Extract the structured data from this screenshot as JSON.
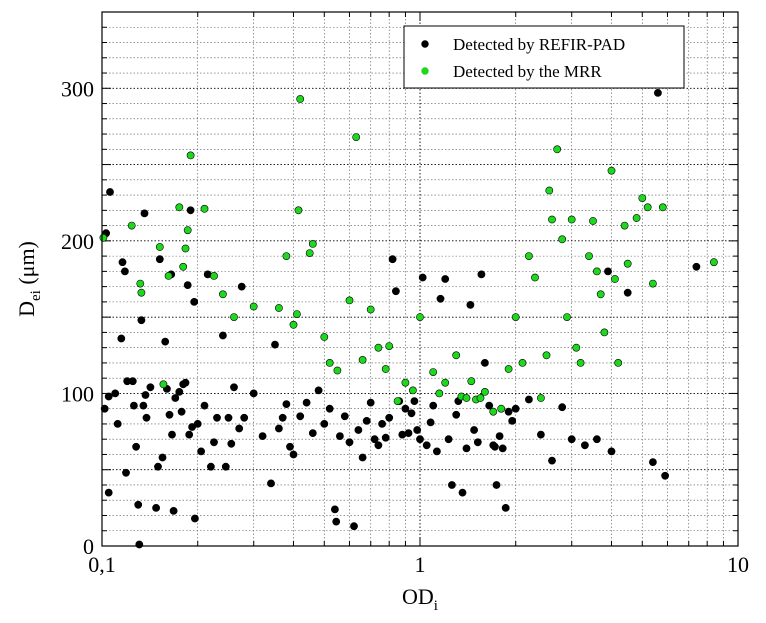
{
  "chart_data": {
    "type": "scatter",
    "x_scale": "log",
    "xlim": [
      0.1,
      10
    ],
    "ylim": [
      0,
      350
    ],
    "grid": true,
    "legend_position": "top-right",
    "xlabel": "OD",
    "xlabel_sub": "i",
    "ylabel": "D",
    "ylabel_sub": "ei",
    "ylabel_suffix": " (μm)",
    "x_ticks": [
      {
        "value": 0.1,
        "label": "0,1"
      },
      {
        "value": 1,
        "label": "1"
      },
      {
        "value": 10,
        "label": "10"
      }
    ],
    "y_ticks": [
      {
        "value": 0,
        "label": "0"
      },
      {
        "value": 100,
        "label": "100"
      },
      {
        "value": 200,
        "label": "200"
      },
      {
        "value": 300,
        "label": "300"
      }
    ],
    "series": [
      {
        "name": "Detected by REFIR-PAD",
        "color": "#000000",
        "points": [
          [
            0.102,
            90
          ],
          [
            0.103,
            205
          ],
          [
            0.105,
            35
          ],
          [
            0.105,
            98
          ],
          [
            0.106,
            232
          ],
          [
            0.11,
            100
          ],
          [
            0.112,
            80
          ],
          [
            0.115,
            136
          ],
          [
            0.116,
            186
          ],
          [
            0.118,
            180
          ],
          [
            0.119,
            48
          ],
          [
            0.12,
            108
          ],
          [
            0.125,
            108
          ],
          [
            0.126,
            92
          ],
          [
            0.128,
            65
          ],
          [
            0.13,
            27
          ],
          [
            0.131,
            1
          ],
          [
            0.133,
            148
          ],
          [
            0.135,
            92
          ],
          [
            0.136,
            218
          ],
          [
            0.137,
            99
          ],
          [
            0.138,
            84
          ],
          [
            0.142,
            104
          ],
          [
            0.148,
            25
          ],
          [
            0.15,
            52
          ],
          [
            0.152,
            188
          ],
          [
            0.155,
            58
          ],
          [
            0.158,
            134
          ],
          [
            0.16,
            103
          ],
          [
            0.163,
            86
          ],
          [
            0.165,
            178
          ],
          [
            0.166,
            73
          ],
          [
            0.168,
            23
          ],
          [
            0.17,
            97
          ],
          [
            0.175,
            101
          ],
          [
            0.178,
            88
          ],
          [
            0.18,
            106
          ],
          [
            0.183,
            107
          ],
          [
            0.186,
            171
          ],
          [
            0.188,
            73
          ],
          [
            0.19,
            220
          ],
          [
            0.192,
            78
          ],
          [
            0.195,
            160
          ],
          [
            0.196,
            18
          ],
          [
            0.2,
            80
          ],
          [
            0.205,
            62
          ],
          [
            0.21,
            92
          ],
          [
            0.215,
            178
          ],
          [
            0.22,
            52
          ],
          [
            0.225,
            68
          ],
          [
            0.23,
            84
          ],
          [
            0.24,
            138
          ],
          [
            0.245,
            52
          ],
          [
            0.25,
            84
          ],
          [
            0.255,
            67
          ],
          [
            0.26,
            104
          ],
          [
            0.27,
            77
          ],
          [
            0.275,
            170
          ],
          [
            0.28,
            84
          ],
          [
            0.3,
            100
          ],
          [
            0.32,
            72
          ],
          [
            0.34,
            41
          ],
          [
            0.35,
            132
          ],
          [
            0.36,
            77
          ],
          [
            0.37,
            84
          ],
          [
            0.38,
            93
          ],
          [
            0.39,
            65
          ],
          [
            0.4,
            60
          ],
          [
            0.42,
            85
          ],
          [
            0.44,
            94
          ],
          [
            0.46,
            74
          ],
          [
            0.48,
            102
          ],
          [
            0.5,
            80
          ],
          [
            0.52,
            90
          ],
          [
            0.54,
            24
          ],
          [
            0.545,
            16
          ],
          [
            0.56,
            72
          ],
          [
            0.58,
            85
          ],
          [
            0.6,
            68
          ],
          [
            0.62,
            13
          ],
          [
            0.64,
            76
          ],
          [
            0.66,
            58
          ],
          [
            0.68,
            82
          ],
          [
            0.7,
            94
          ],
          [
            0.72,
            70
          ],
          [
            0.74,
            66
          ],
          [
            0.76,
            80
          ],
          [
            0.78,
            71
          ],
          [
            0.8,
            84
          ],
          [
            0.82,
            188
          ],
          [
            0.84,
            167
          ],
          [
            0.86,
            95
          ],
          [
            0.88,
            73
          ],
          [
            0.9,
            90
          ],
          [
            0.92,
            74
          ],
          [
            0.94,
            87
          ],
          [
            0.96,
            95
          ],
          [
            0.98,
            76
          ],
          [
            1.0,
            70
          ],
          [
            1.02,
            176
          ],
          [
            1.05,
            66
          ],
          [
            1.08,
            81
          ],
          [
            1.1,
            92
          ],
          [
            1.13,
            62
          ],
          [
            1.16,
            162
          ],
          [
            1.2,
            175
          ],
          [
            1.23,
            70
          ],
          [
            1.26,
            40
          ],
          [
            1.3,
            86
          ],
          [
            1.32,
            95
          ],
          [
            1.36,
            35
          ],
          [
            1.4,
            64
          ],
          [
            1.44,
            158
          ],
          [
            1.48,
            76
          ],
          [
            1.52,
            68
          ],
          [
            1.56,
            178
          ],
          [
            1.6,
            120
          ],
          [
            1.65,
            92
          ],
          [
            1.7,
            66
          ],
          [
            1.72,
            65
          ],
          [
            1.74,
            40
          ],
          [
            1.78,
            72
          ],
          [
            1.82,
            64
          ],
          [
            1.86,
            25
          ],
          [
            1.9,
            88
          ],
          [
            1.95,
            82
          ],
          [
            2.0,
            90
          ],
          [
            2.2,
            96
          ],
          [
            2.4,
            73
          ],
          [
            2.6,
            56
          ],
          [
            2.8,
            91
          ],
          [
            3.0,
            70
          ],
          [
            3.3,
            66
          ],
          [
            3.6,
            70
          ],
          [
            3.9,
            180
          ],
          [
            4.0,
            62
          ],
          [
            4.5,
            166
          ],
          [
            5.4,
            55
          ],
          [
            5.6,
            297
          ],
          [
            5.9,
            46
          ],
          [
            7.4,
            183
          ]
        ]
      },
      {
        "name": "Detected by the MRR",
        "color": "#1ed81e",
        "points": [
          [
            0.101,
            202
          ],
          [
            0.124,
            210
          ],
          [
            0.132,
            172
          ],
          [
            0.133,
            166
          ],
          [
            0.152,
            196
          ],
          [
            0.156,
            106
          ],
          [
            0.162,
            177
          ],
          [
            0.175,
            222
          ],
          [
            0.18,
            183
          ],
          [
            0.183,
            195
          ],
          [
            0.186,
            207
          ],
          [
            0.19,
            256
          ],
          [
            0.21,
            221
          ],
          [
            0.225,
            177
          ],
          [
            0.24,
            165
          ],
          [
            0.26,
            150
          ],
          [
            0.3,
            157
          ],
          [
            0.36,
            156
          ],
          [
            0.38,
            190
          ],
          [
            0.4,
            145
          ],
          [
            0.41,
            152
          ],
          [
            0.415,
            220
          ],
          [
            0.42,
            293
          ],
          [
            0.45,
            192
          ],
          [
            0.46,
            198
          ],
          [
            0.5,
            137
          ],
          [
            0.52,
            120
          ],
          [
            0.55,
            115
          ],
          [
            0.6,
            161
          ],
          [
            0.63,
            268
          ],
          [
            0.66,
            122
          ],
          [
            0.7,
            155
          ],
          [
            0.74,
            130
          ],
          [
            0.78,
            116
          ],
          [
            0.8,
            131
          ],
          [
            0.85,
            95
          ],
          [
            0.9,
            107
          ],
          [
            0.95,
            102
          ],
          [
            1.0,
            150
          ],
          [
            1.1,
            114
          ],
          [
            1.15,
            100
          ],
          [
            1.2,
            107
          ],
          [
            1.3,
            125
          ],
          [
            1.35,
            98
          ],
          [
            1.4,
            97
          ],
          [
            1.45,
            108
          ],
          [
            1.5,
            96
          ],
          [
            1.55,
            97
          ],
          [
            1.6,
            101
          ],
          [
            1.7,
            88
          ],
          [
            1.8,
            90
          ],
          [
            1.9,
            116
          ],
          [
            2.0,
            150
          ],
          [
            2.1,
            120
          ],
          [
            2.2,
            190
          ],
          [
            2.3,
            176
          ],
          [
            2.4,
            97
          ],
          [
            2.5,
            125
          ],
          [
            2.55,
            233
          ],
          [
            2.6,
            214
          ],
          [
            2.7,
            260
          ],
          [
            2.8,
            201
          ],
          [
            2.9,
            150
          ],
          [
            3.0,
            214
          ],
          [
            3.1,
            130
          ],
          [
            3.2,
            120
          ],
          [
            3.4,
            190
          ],
          [
            3.5,
            213
          ],
          [
            3.6,
            180
          ],
          [
            3.7,
            165
          ],
          [
            3.8,
            140
          ],
          [
            4.0,
            246
          ],
          [
            4.1,
            175
          ],
          [
            4.2,
            120
          ],
          [
            4.4,
            210
          ],
          [
            4.5,
            185
          ],
          [
            4.8,
            215
          ],
          [
            5.0,
            228
          ],
          [
            5.2,
            222
          ],
          [
            5.4,
            172
          ],
          [
            5.8,
            222
          ],
          [
            8.4,
            186
          ]
        ]
      }
    ]
  }
}
